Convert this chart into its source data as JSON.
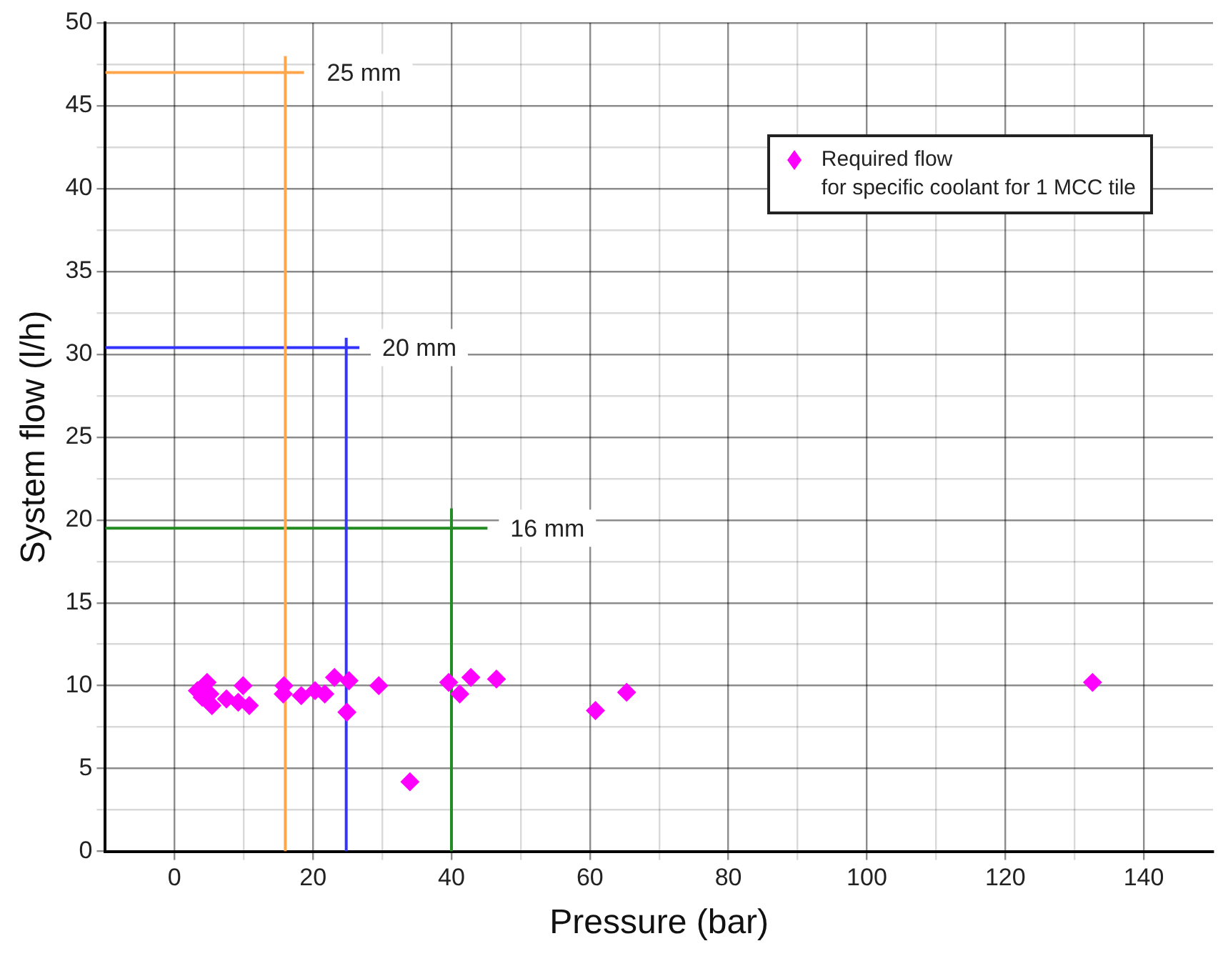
{
  "chart_data": {
    "type": "scatter",
    "xlabel": "Pressure (bar)",
    "ylabel": "System flow (l/h)",
    "xlim": [
      -10,
      150
    ],
    "ylim": [
      0,
      50
    ],
    "xticks": [
      0,
      {
        "value": 10,
        "label": null
      },
      20,
      {
        "value": 30,
        "label": null
      },
      40,
      {
        "value": 50,
        "label": null
      },
      60,
      {
        "value": 70,
        "label": null
      },
      80,
      {
        "value": 90,
        "label": null
      },
      100,
      {
        "value": 110,
        "label": null
      },
      120,
      {
        "value": 130,
        "label": null
      },
      140
    ],
    "yticks": [
      0,
      {
        "value": 2.5,
        "label": null
      },
      5,
      {
        "value": 7.5,
        "label": null
      },
      10,
      {
        "value": 12.5,
        "label": null
      },
      15,
      {
        "value": 17.5,
        "label": null
      },
      20,
      {
        "value": 22.5,
        "label": null
      },
      25,
      {
        "value": 27.5,
        "label": null
      },
      30,
      {
        "value": 32.5,
        "label": null
      },
      35,
      {
        "value": 37.5,
        "label": null
      },
      40,
      {
        "value": 42.5,
        "label": null
      },
      45,
      {
        "value": 47.5,
        "label": null
      },
      50
    ],
    "grid": true,
    "legend": "top right",
    "series": [
      {
        "name": "Required flow\nfor specific coolant for 1 MCC tile",
        "marker": "diamond",
        "color": "#ff00ff",
        "x": [
          3.3,
          4.7,
          4.0,
          5.4,
          5.1,
          7.5,
          9.9,
          9.2,
          10.8,
          15.8,
          15.7,
          18.3,
          20.3,
          21.7,
          23.1,
          25.2,
          24.9,
          29.5,
          34.0,
          39.6,
          41.2,
          42.8,
          46.5,
          60.8,
          65.3,
          132.6
        ],
        "values": [
          9.7,
          10.2,
          9.3,
          8.8,
          9.5,
          9.2,
          10.0,
          9.0,
          8.8,
          10.0,
          9.5,
          9.4,
          9.7,
          9.5,
          10.5,
          10.3,
          8.4,
          10.0,
          4.2,
          10.2,
          9.5,
          10.5,
          10.4,
          8.5,
          9.6,
          10.2
        ]
      },
      {
        "name": "25 mm",
        "type": "line",
        "color": "#ffa64d",
        "x": [
          -10,
          18.7
        ],
        "values": [
          47,
          47
        ]
      },
      {
        "type": "line",
        "color": "#ffa64d",
        "x": [
          16,
          16
        ],
        "values": [
          0,
          48
        ]
      },
      {
        "name": "20 mm",
        "type": "line",
        "color": "#3333ff",
        "x": [
          -10,
          26.7
        ],
        "values": [
          30.4,
          30.4
        ]
      },
      {
        "type": "line",
        "color": "#3333ff",
        "x": [
          24.8,
          24.8
        ],
        "values": [
          0,
          31
        ]
      },
      {
        "name": "16 mm",
        "type": "line",
        "color": "#228b22",
        "x": [
          -10,
          45.2
        ],
        "values": [
          19.5,
          19.5
        ]
      },
      {
        "type": "line",
        "color": "#228b22",
        "x": [
          40,
          40
        ],
        "values": [
          0,
          20.7
        ]
      }
    ]
  }
}
